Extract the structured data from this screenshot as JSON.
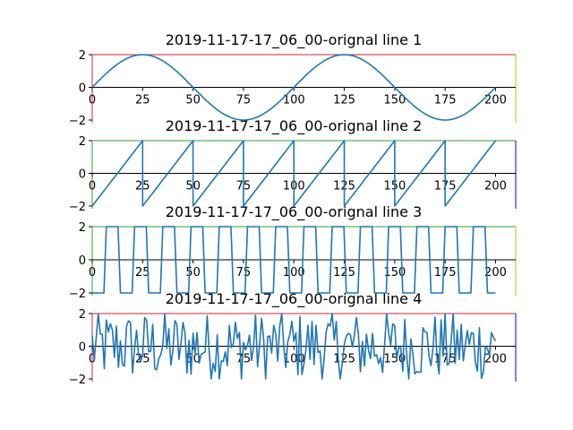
{
  "chart_data": [
    {
      "type": "line",
      "title": "2019-11-17-17_06_00-orignal line 1",
      "xlim": [
        0,
        210
      ],
      "ylim": [
        -2,
        2
      ],
      "x_ticks": [
        0,
        25,
        50,
        75,
        100,
        125,
        150,
        175,
        200
      ],
      "y_ticks": [
        -2,
        0,
        2
      ],
      "line_color": "#1f77b4",
      "spine_colors": {
        "top": "#d62728",
        "left": "#d62728",
        "right": "#bcbd22"
      },
      "series": [
        {
          "shape": "sine",
          "period": 100,
          "amplitude": 2,
          "x": [
            0,
            200
          ]
        }
      ]
    },
    {
      "type": "line",
      "title": "2019-11-17-17_06_00-orignal line 2",
      "xlim": [
        0,
        210
      ],
      "ylim": [
        -2,
        2
      ],
      "x_ticks": [
        0,
        25,
        50,
        75,
        100,
        125,
        150,
        175,
        200
      ],
      "y_ticks": [
        -2,
        0,
        2
      ],
      "line_color": "#1f77b4",
      "spine_colors": {
        "top": "#2ca02c",
        "left": "#2ca02c",
        "right": "#0000ff"
      },
      "series": [
        {
          "shape": "sawtooth",
          "period": 25,
          "amplitude": 2,
          "x": [
            0,
            200
          ]
        }
      ]
    },
    {
      "type": "line",
      "title": "2019-11-17-17_06_00-orignal line 3",
      "xlim": [
        0,
        210
      ],
      "ylim": [
        -2,
        2
      ],
      "x_ticks": [
        0,
        25,
        50,
        75,
        100,
        125,
        150,
        175,
        200
      ],
      "y_ticks": [
        -2,
        0,
        2
      ],
      "line_color": "#1f77b4",
      "spine_colors": {
        "top": "#2ca02c",
        "left": "#2ca02c",
        "right": "#bcbd22"
      },
      "series": [
        {
          "shape": "square",
          "period": 14,
          "amplitude": 2,
          "x": [
            0,
            200
          ]
        }
      ]
    },
    {
      "type": "line",
      "title": "2019-11-17-17_06_00-orignal line 4",
      "xlim": [
        0,
        210
      ],
      "ylim": [
        -2,
        2
      ],
      "x_ticks": [
        0,
        25,
        50,
        75,
        100,
        125,
        150,
        175,
        200
      ],
      "y_ticks": [
        -2,
        0,
        2
      ],
      "line_color": "#1f77b4",
      "spine_colors": {
        "top": "#d62728",
        "left": "#d62728",
        "right": "#0000ff"
      },
      "series": [
        {
          "shape": "random",
          "amplitude": 2,
          "x": [
            0,
            200
          ]
        }
      ]
    }
  ]
}
